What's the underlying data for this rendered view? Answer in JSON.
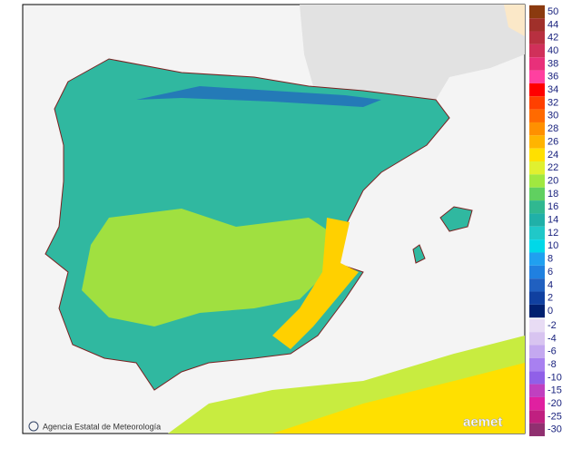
{
  "credit": "Agencia Estatal de Meteorología",
  "logo": "aemet",
  "scale": {
    "positive": [
      {
        "value": 50,
        "color": "#8b3a0f"
      },
      {
        "value": 44,
        "color": "#a0302a"
      },
      {
        "value": 42,
        "color": "#b83040"
      },
      {
        "value": 40,
        "color": "#d0305a"
      },
      {
        "value": 38,
        "color": "#e8307a"
      },
      {
        "value": 36,
        "color": "#ff40a0"
      },
      {
        "value": 34,
        "color": "#ff0000"
      },
      {
        "value": 32,
        "color": "#ff4000"
      },
      {
        "value": 30,
        "color": "#ff6a00"
      },
      {
        "value": 28,
        "color": "#ff9000"
      },
      {
        "value": 26,
        "color": "#ffb400"
      },
      {
        "value": 24,
        "color": "#ffe000"
      },
      {
        "value": 22,
        "color": "#e0f030"
      },
      {
        "value": 20,
        "color": "#a0e840"
      },
      {
        "value": 18,
        "color": "#60d060"
      },
      {
        "value": 16,
        "color": "#30b890"
      },
      {
        "value": 14,
        "color": "#20b0a8"
      },
      {
        "value": 12,
        "color": "#20c8c8"
      },
      {
        "value": 10,
        "color": "#00d8e8"
      },
      {
        "value": 8,
        "color": "#20a0f0"
      },
      {
        "value": 6,
        "color": "#2080e0"
      },
      {
        "value": 4,
        "color": "#2060c0"
      },
      {
        "value": 2,
        "color": "#1040a0"
      },
      {
        "value": 0,
        "color": "#002070"
      }
    ],
    "negative": [
      {
        "value": -2,
        "color": "#e8dcf4"
      },
      {
        "value": -4,
        "color": "#d8c4f0"
      },
      {
        "value": -6,
        "color": "#c4a8f0"
      },
      {
        "value": -8,
        "color": "#a880f0"
      },
      {
        "value": -10,
        "color": "#9060e8"
      },
      {
        "value": -15,
        "color": "#c040c0"
      },
      {
        "value": -20,
        "color": "#e020a0"
      },
      {
        "value": -25,
        "color": "#c02080"
      },
      {
        "value": -30,
        "color": "#903070"
      }
    ]
  }
}
